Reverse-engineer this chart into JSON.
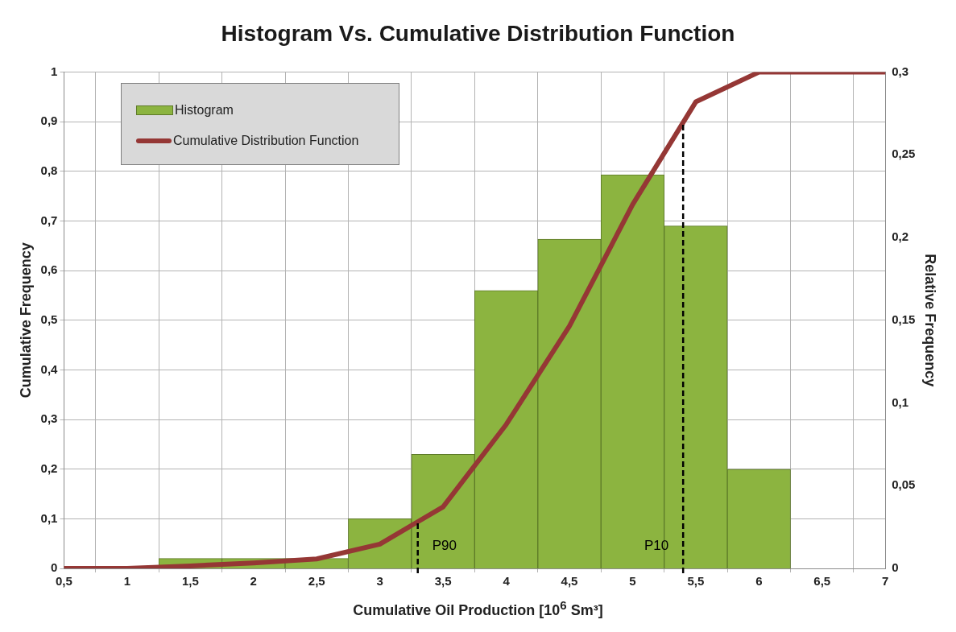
{
  "chart_data": {
    "type": "histogram",
    "title": "Histogram Vs. Cumulative Distribution Function",
    "xlabel": "Cumulative Oil Production [10$^{6}$  Sm³]",
    "ylabel": "Cumulative Frequency",
    "y2label": "Relative Frequency",
    "bins": [
      1.25,
      1.75,
      2.25,
      2.75,
      3.25,
      3.75,
      4.25,
      4.75,
      5.25,
      5.75,
      6.25
    ],
    "series": [
      {
        "name": "Histogram",
        "axis": "y2",
        "color": "#8cb440",
        "values": [
          0.006,
          0.006,
          0.006,
          0.03,
          0.069,
          0.168,
          0.199,
          0.238,
          0.207,
          0.06
        ]
      },
      {
        "name": "Cumulative Distribution Function",
        "type": "line",
        "color": "#953735",
        "x": [
          0.5,
          1,
          1.5,
          2,
          2.5,
          3,
          3.5,
          4,
          4.5,
          5,
          5.5,
          6,
          6.5,
          7
        ],
        "values": [
          0,
          0,
          0.005,
          0.011,
          0.019,
          0.049,
          0.124,
          0.29,
          0.488,
          0.733,
          0.94,
          1,
          1,
          1
        ]
      }
    ],
    "xlim": [
      0.5,
      7
    ],
    "xticks": [
      {
        "value": 0.5,
        "label": "0,5"
      },
      1,
      {
        "value": 1.5,
        "label": "1,5"
      },
      2,
      {
        "value": 2.5,
        "label": "2,5"
      },
      3,
      {
        "value": 3.5,
        "label": "3,5"
      },
      4,
      {
        "value": 4.5,
        "label": "4,5"
      },
      5,
      {
        "value": 5.5,
        "label": "5,5"
      },
      6,
      {
        "value": 6.5,
        "label": "6,5"
      },
      7
    ],
    "ylim": [
      0,
      1
    ],
    "yticks": [
      0,
      {
        "value": 0.1,
        "label": "0,1"
      },
      {
        "value": 0.2,
        "label": "0,2"
      },
      {
        "value": 0.3,
        "label": "0,3"
      },
      {
        "value": 0.4,
        "label": "0,4"
      },
      {
        "value": 0.5,
        "label": "0,5"
      },
      {
        "value": 0.6,
        "label": "0,6"
      },
      {
        "value": 0.7,
        "label": "0,7"
      },
      {
        "value": 0.8,
        "label": "0,8"
      },
      {
        "value": 0.9,
        "label": "0,9"
      },
      1
    ],
    "y2lim": [
      0,
      0.3
    ],
    "y2ticks": [
      0,
      {
        "value": 0.05,
        "label": "0,05"
      },
      {
        "value": 0.1,
        "label": "0,1"
      },
      {
        "value": 0.15,
        "label": "0,15"
      },
      {
        "value": 0.2,
        "label": "0,2"
      },
      {
        "value": 0.25,
        "label": "0,25"
      },
      {
        "value": 0.3,
        "label": "0,3"
      }
    ],
    "ref_lines": [
      {
        "axis": "x",
        "value": 3.3,
        "label": "P90",
        "line_style": "dashed"
      },
      {
        "axis": "x",
        "value": 5.4,
        "label": "P10",
        "line_style": "dashed"
      }
    ],
    "grid": true,
    "legend": "top left"
  }
}
